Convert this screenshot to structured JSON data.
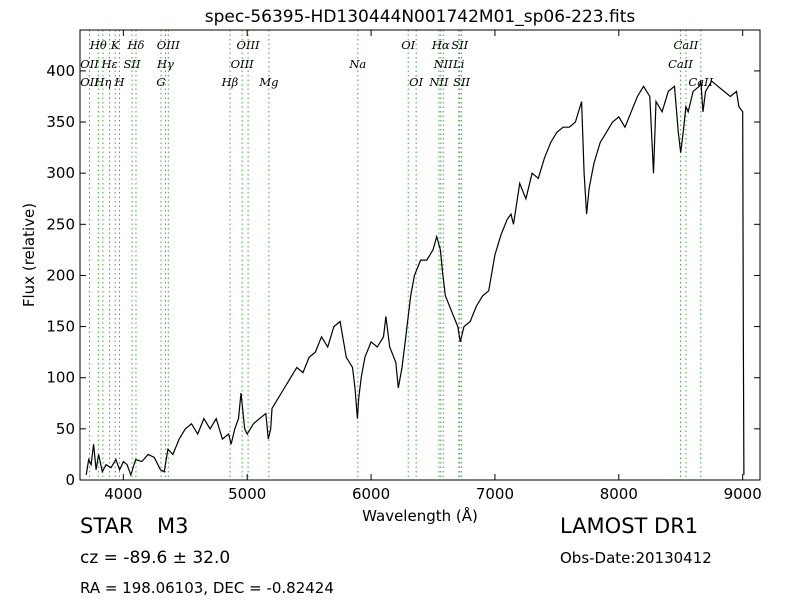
{
  "chart_data": {
    "type": "line",
    "title": "spec-56395-HD130444N001742M01_sp06-223.fits",
    "xlabel": "Wavelength (Å)",
    "ylabel": "Flux (relative)",
    "xlim": [
      3650,
      9140
    ],
    "ylim": [
      0,
      440
    ],
    "x_ticks": [
      4000,
      5000,
      6000,
      7000,
      8000,
      9000
    ],
    "x_tick_labels": [
      "4000",
      "5000",
      "6000",
      "7000",
      "8000",
      "9000"
    ],
    "y_ticks": [
      0,
      50,
      100,
      150,
      200,
      250,
      300,
      350,
      400
    ],
    "y_tick_labels": [
      "0",
      "50",
      "100",
      "150",
      "200",
      "250",
      "300",
      "350",
      "400"
    ],
    "grid": false,
    "line_color": "#000000",
    "marker_line_color": "#3caa3c",
    "series": [
      {
        "x": [
          3700,
          3720,
          3740,
          3760,
          3780,
          3800,
          3830,
          3860,
          3900,
          3940,
          3970,
          4000,
          4030,
          4060,
          4100,
          4150,
          4200,
          4250,
          4300,
          4330,
          4360,
          4400,
          4450,
          4500,
          4550,
          4600,
          4650,
          4700,
          4750,
          4800,
          4850,
          4870,
          4900,
          4930,
          4950,
          4980,
          5000,
          5050,
          5100,
          5150,
          5170,
          5190,
          5200,
          5250,
          5300,
          5350,
          5400,
          5450,
          5500,
          5550,
          5600,
          5650,
          5700,
          5750,
          5800,
          5850,
          5870,
          5890,
          5900,
          5920,
          5950,
          6000,
          6050,
          6100,
          6120,
          6150,
          6200,
          6220,
          6250,
          6280,
          6300,
          6320,
          6350,
          6400,
          6450,
          6500,
          6530,
          6560,
          6580,
          6600,
          6650,
          6700,
          6720,
          6750,
          6800,
          6850,
          6900,
          6950,
          7000,
          7050,
          7100,
          7130,
          7150,
          7200,
          7250,
          7300,
          7350,
          7400,
          7450,
          7500,
          7550,
          7600,
          7650,
          7700,
          7720,
          7740,
          7760,
          7800,
          7850,
          7900,
          7950,
          8000,
          8050,
          8100,
          8150,
          8200,
          8250,
          8280,
          8300,
          8350,
          8400,
          8450,
          8480,
          8500,
          8520,
          8542,
          8560,
          8600,
          8650,
          8662,
          8680,
          8700,
          8750,
          8800,
          8850,
          8900,
          8950,
          8970,
          9000,
          9005,
          9010
        ],
        "y": [
          5,
          20,
          15,
          35,
          10,
          25,
          8,
          15,
          12,
          20,
          10,
          18,
          15,
          5,
          20,
          18,
          25,
          22,
          10,
          8,
          30,
          25,
          40,
          50,
          55,
          45,
          60,
          50,
          60,
          40,
          45,
          35,
          50,
          60,
          85,
          50,
          45,
          55,
          60,
          65,
          40,
          50,
          70,
          80,
          90,
          100,
          110,
          105,
          120,
          125,
          140,
          130,
          150,
          155,
          120,
          110,
          90,
          60,
          80,
          100,
          120,
          135,
          130,
          140,
          160,
          130,
          115,
          90,
          110,
          140,
          160,
          180,
          200,
          215,
          215,
          225,
          238,
          225,
          200,
          180,
          165,
          150,
          135,
          150,
          155,
          170,
          180,
          185,
          220,
          240,
          255,
          260,
          250,
          290,
          275,
          300,
          295,
          315,
          330,
          340,
          345,
          345,
          350,
          370,
          300,
          260,
          285,
          310,
          330,
          340,
          350,
          355,
          345,
          360,
          375,
          385,
          375,
          300,
          370,
          360,
          380,
          385,
          340,
          320,
          340,
          365,
          360,
          380,
          385,
          390,
          360,
          380,
          390,
          385,
          380,
          375,
          380,
          365,
          360,
          150,
          5
        ]
      }
    ],
    "lines": [
      {
        "name": "OII",
        "wl": 3727,
        "pos": "top",
        "row": 1
      },
      {
        "name": "OII",
        "wl": 3727,
        "pos": "top",
        "row": 2
      },
      {
        "name": "Hθ",
        "wl": 3798,
        "pos": "top",
        "row": 0
      },
      {
        "name": "Hη",
        "wl": 3835,
        "pos": "top",
        "row": 2
      },
      {
        "name": "Hε",
        "wl": 3889,
        "pos": "top",
        "row": 1
      },
      {
        "name": "K",
        "wl": 3934,
        "pos": "top",
        "row": 0
      },
      {
        "name": "SII",
        "wl": 4070,
        "pos": "top",
        "row": 1
      },
      {
        "name": "H",
        "wl": 3969,
        "pos": "top",
        "row": 2
      },
      {
        "name": "Hδ",
        "wl": 4102,
        "pos": "top",
        "row": 0
      },
      {
        "name": "OIII",
        "wl": 4363,
        "pos": "top",
        "row": 0
      },
      {
        "name": "Hγ",
        "wl": 4340,
        "pos": "top",
        "row": 1
      },
      {
        "name": "G",
        "wl": 4304,
        "pos": "top",
        "row": 2
      },
      {
        "name": "OIII",
        "wl": 5007,
        "pos": "top",
        "row": 0
      },
      {
        "name": "OIII",
        "wl": 4959,
        "pos": "top",
        "row": 1
      },
      {
        "name": "Hβ",
        "wl": 4861,
        "pos": "top",
        "row": 2
      },
      {
        "name": "Mg",
        "wl": 5175,
        "pos": "top",
        "row": 2
      },
      {
        "name": "Na",
        "wl": 5893,
        "pos": "top",
        "row": 1
      },
      {
        "name": "OI",
        "wl": 6300,
        "pos": "top",
        "row": 0
      },
      {
        "name": "OI",
        "wl": 6364,
        "pos": "top",
        "row": 2
      },
      {
        "name": "Hα",
        "wl": 6563,
        "pos": "top",
        "row": 0
      },
      {
        "name": "NII",
        "wl": 6583,
        "pos": "top",
        "row": 1
      },
      {
        "name": "NII",
        "wl": 6548,
        "pos": "top",
        "row": 2
      },
      {
        "name": "SII",
        "wl": 6716,
        "pos": "top",
        "row": 0
      },
      {
        "name": "Li",
        "wl": 6708,
        "pos": "top",
        "row": 1
      },
      {
        "name": "SII",
        "wl": 6731,
        "pos": "top",
        "row": 2
      },
      {
        "name": "CaII",
        "wl": 8542,
        "pos": "top",
        "row": 0
      },
      {
        "name": "CaII",
        "wl": 8498,
        "pos": "top",
        "row": 1
      },
      {
        "name": "CaII",
        "wl": 8662,
        "pos": "top",
        "row": 2
      }
    ]
  },
  "info": {
    "object_type": "STAR",
    "subclass": "M3",
    "survey": "LAMOST DR1",
    "cz": "cz = -89.6 ± 32.0",
    "obs_date": "Obs-Date:20130412",
    "radec": "RA = 198.06103, DEC = -0.82424"
  }
}
